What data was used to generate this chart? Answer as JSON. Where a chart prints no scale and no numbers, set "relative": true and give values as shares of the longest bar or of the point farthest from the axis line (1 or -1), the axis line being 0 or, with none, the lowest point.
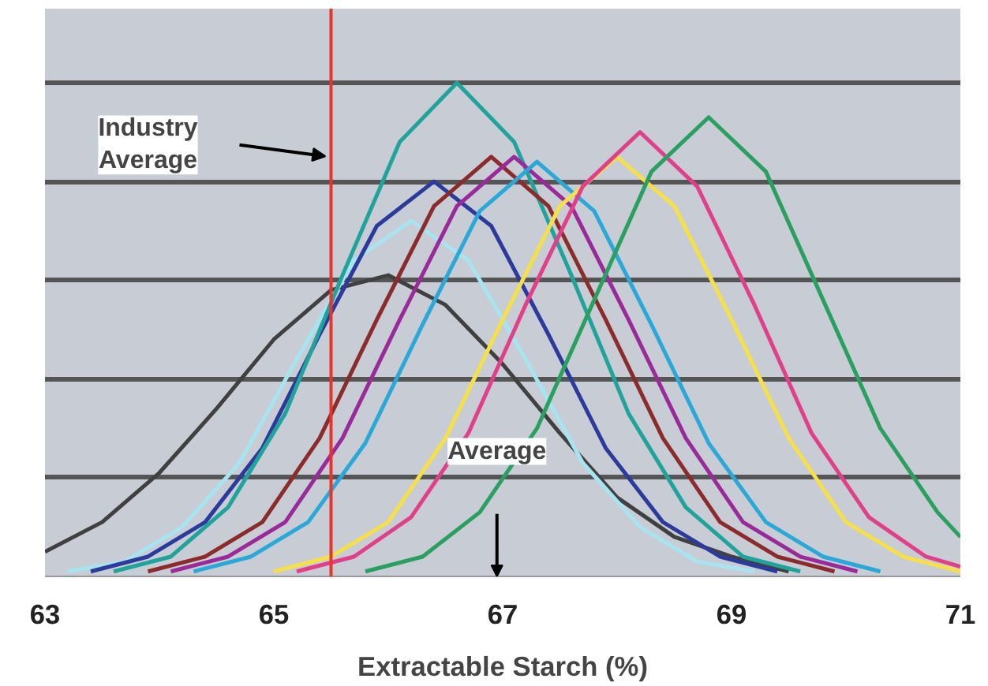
{
  "chart_data": {
    "type": "line",
    "relative": true,
    "xlabel": "Extractable Starch (%)",
    "xlim": [
      63,
      71
    ],
    "xticks": [
      63,
      65,
      67,
      69,
      71
    ],
    "grid": "y",
    "tick_labels": "x",
    "marker": "none",
    "line_style": "solid",
    "ref_lines": [
      {
        "axis": "x",
        "value": 65.5,
        "color": "#e8342c"
      }
    ],
    "annotations": [
      "Industry Average",
      "Average"
    ],
    "series": [
      {
        "color": "#404040",
        "x": [
          63,
          63.5,
          64,
          64.5,
          65,
          65.5,
          66,
          66.5,
          67,
          67.5,
          68,
          68.5,
          69,
          69.5
        ],
        "values": [
          0.05,
          0.11,
          0.21,
          0.34,
          0.48,
          0.58,
          0.61,
          0.55,
          0.43,
          0.29,
          0.16,
          0.08,
          0.04,
          0.01
        ]
      },
      {
        "color": "#a8e4f0",
        "x": [
          63.2,
          63.7,
          64.2,
          64.7,
          65.2,
          65.7,
          66.2,
          66.7,
          67.2,
          67.7,
          68.2,
          68.7,
          69.2
        ],
        "values": [
          0.01,
          0.03,
          0.1,
          0.23,
          0.44,
          0.64,
          0.72,
          0.64,
          0.44,
          0.23,
          0.1,
          0.03,
          0.01
        ]
      },
      {
        "color": "#2c3a9c",
        "x": [
          63.4,
          63.9,
          64.4,
          64.9,
          65.4,
          65.9,
          66.4,
          66.9,
          67.4,
          67.9,
          68.4,
          68.9,
          69.4
        ],
        "values": [
          0.01,
          0.04,
          0.11,
          0.26,
          0.49,
          0.71,
          0.8,
          0.71,
          0.49,
          0.26,
          0.11,
          0.04,
          0.01
        ]
      },
      {
        "color": "#1fa39a",
        "x": [
          63.6,
          64.1,
          64.6,
          65.1,
          65.6,
          66.1,
          66.6,
          67.1,
          67.6,
          68.1,
          68.6,
          69.1,
          69.6
        ],
        "values": [
          0.01,
          0.04,
          0.14,
          0.33,
          0.61,
          0.88,
          1,
          0.88,
          0.61,
          0.33,
          0.14,
          0.04,
          0.01
        ]
      },
      {
        "color": "#8b2b2b",
        "x": [
          63.9,
          64.4,
          64.9,
          65.4,
          65.9,
          66.4,
          66.9,
          67.4,
          67.9,
          68.4,
          68.9,
          69.4,
          69.9
        ],
        "values": [
          0.01,
          0.04,
          0.11,
          0.28,
          0.52,
          0.75,
          0.85,
          0.75,
          0.52,
          0.28,
          0.11,
          0.04,
          0.01
        ]
      },
      {
        "color": "#9a2a9a",
        "x": [
          64.1,
          64.6,
          65.1,
          65.6,
          66.1,
          66.6,
          67.1,
          67.6,
          68.1,
          68.6,
          69.1,
          69.6,
          70.1
        ],
        "values": [
          0.01,
          0.04,
          0.11,
          0.28,
          0.52,
          0.75,
          0.85,
          0.75,
          0.52,
          0.28,
          0.11,
          0.04,
          0.01
        ]
      },
      {
        "color": "#2aa8d8",
        "x": [
          64.3,
          64.8,
          65.3,
          65.8,
          66.3,
          66.8,
          67.3,
          67.8,
          68.3,
          68.8,
          69.3,
          69.8,
          70.3
        ],
        "values": [
          0.01,
          0.04,
          0.11,
          0.27,
          0.51,
          0.74,
          0.84,
          0.74,
          0.51,
          0.27,
          0.11,
          0.04,
          0.01
        ]
      },
      {
        "color": "#f5e04a",
        "x": [
          65,
          65.5,
          66,
          66.5,
          67,
          67.5,
          68,
          68.5,
          69,
          69.5,
          70,
          70.5,
          71
        ],
        "values": [
          0.01,
          0.04,
          0.11,
          0.28,
          0.52,
          0.75,
          0.85,
          0.75,
          0.52,
          0.28,
          0.11,
          0.04,
          0.01
        ]
      },
      {
        "color": "#e0408a",
        "x": [
          65.2,
          65.7,
          66.2,
          66.7,
          67.2,
          67.7,
          68.2,
          68.7,
          69.2,
          69.7,
          70.2,
          70.7,
          71
        ],
        "values": [
          0.01,
          0.04,
          0.12,
          0.29,
          0.55,
          0.79,
          0.9,
          0.79,
          0.55,
          0.29,
          0.12,
          0.04,
          0.02
        ]
      },
      {
        "color": "#2aa060",
        "x": [
          65.8,
          66.3,
          66.8,
          67.3,
          67.8,
          68.3,
          68.8,
          69.3,
          69.8,
          70.3,
          70.8,
          71
        ],
        "values": [
          0.01,
          0.04,
          0.13,
          0.3,
          0.56,
          0.82,
          0.93,
          0.82,
          0.56,
          0.3,
          0.13,
          0.08
        ]
      }
    ]
  }
}
